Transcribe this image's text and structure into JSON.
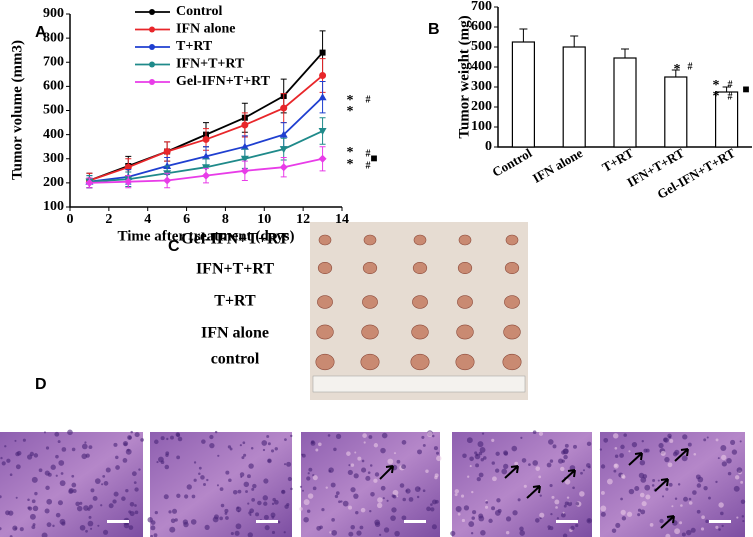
{
  "panel_labels": [
    "A",
    "B",
    "C",
    "D"
  ],
  "chart_data": [
    {
      "type": "line",
      "y_label": "Tumor volume (mm3)",
      "x_label": "Time after treatment (days)",
      "x": [
        1,
        3,
        5,
        7,
        9,
        11,
        13
      ],
      "xlim": [
        0,
        14
      ],
      "xticks": [
        0,
        2,
        4,
        6,
        8,
        10,
        12,
        14
      ],
      "ylim": [
        100,
        900
      ],
      "yticks": [
        100,
        200,
        300,
        400,
        500,
        600,
        700,
        800,
        900
      ],
      "series": [
        {
          "name": "Control",
          "color": "#000000",
          "values": [
            210,
            270,
            330,
            400,
            470,
            560,
            740
          ],
          "errors": [
            30,
            40,
            40,
            50,
            60,
            70,
            90
          ]
        },
        {
          "name": "IFN alone",
          "color": "#e8262a",
          "values": [
            210,
            265,
            330,
            380,
            440,
            510,
            645
          ],
          "errors": [
            30,
            35,
            40,
            45,
            50,
            60,
            70
          ]
        },
        {
          "name": "T+RT",
          "color": "#1f3fd0",
          "values": [
            205,
            225,
            270,
            310,
            350,
            400,
            555
          ],
          "errors": [
            25,
            30,
            35,
            40,
            45,
            50,
            65
          ]
        },
        {
          "name": "IFN+T+RT",
          "color": "#1f8a8a",
          "values": [
            205,
            215,
            240,
            265,
            300,
            340,
            415
          ],
          "errors": [
            25,
            30,
            30,
            35,
            40,
            45,
            55
          ]
        },
        {
          "name": "Gel-IFN+T+RT",
          "color": "#e83ce8",
          "values": [
            200,
            205,
            210,
            230,
            250,
            265,
            300
          ],
          "errors": [
            20,
            25,
            30,
            30,
            40,
            40,
            50
          ]
        }
      ],
      "annotations": [
        "*",
        "*",
        "#",
        "*",
        "*",
        "#",
        "#",
        "■"
      ]
    },
    {
      "type": "bar",
      "y_label": "Tumor weight (mg)",
      "categories": [
        "Control",
        "IFN alone",
        "T+RT",
        "IFN+T+RT",
        "Gel-IFN+T+RT"
      ],
      "values": [
        525,
        500,
        445,
        350,
        275
      ],
      "errors": [
        65,
        55,
        45,
        35,
        25
      ],
      "color": "#ffffff",
      "ylim": [
        0,
        700
      ],
      "yticks": [
        0,
        100,
        200,
        300,
        400,
        500,
        600,
        700
      ],
      "annotations": [
        "*",
        "#",
        "*",
        "*",
        "#",
        "#",
        "■"
      ]
    }
  ],
  "photo_labels": [
    "Gel-IFN+T+RT",
    "IFN+T+RT",
    "T+RT",
    "IFN alone",
    "control"
  ]
}
